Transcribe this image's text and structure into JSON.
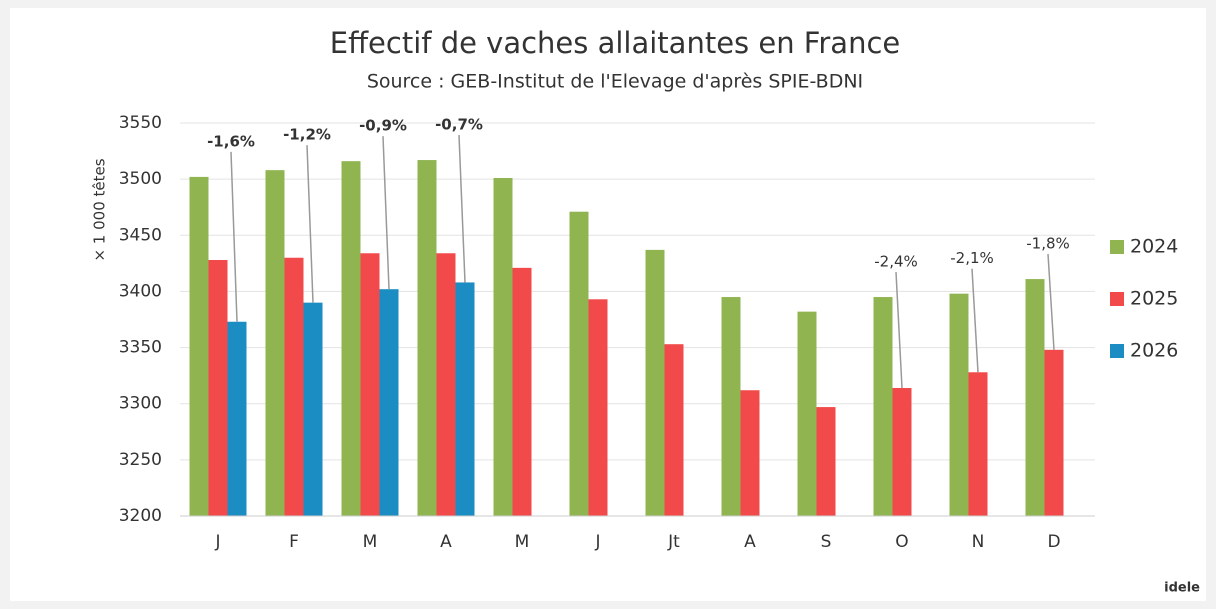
{
  "chart_data": {
    "type": "bar",
    "title": "Effectif de vaches allaitantes en France",
    "subtitle": "Source : GEB-Institut de l'Elevage d'après SPIE-BDNI",
    "y_label": "× 1 000 têtes",
    "categories": [
      "J",
      "F",
      "M",
      "A",
      "M",
      "J",
      "Jt",
      "A",
      "S",
      "O",
      "N",
      "D"
    ],
    "series": [
      {
        "name": "2024",
        "color": "#8fb450",
        "values": [
          3502,
          3508,
          3516,
          3517,
          3501,
          3471,
          3437,
          3395,
          3382,
          3395,
          3398,
          3411
        ]
      },
      {
        "name": "2025",
        "color": "#f24a4a",
        "values": [
          3428,
          3430,
          3434,
          3434,
          3421,
          3393,
          3353,
          3312,
          3297,
          3314,
          3328,
          3348
        ],
        "annotations": [
          null,
          null,
          null,
          null,
          null,
          null,
          null,
          null,
          null,
          "-2,4%",
          "-2,1%",
          "-1,8%"
        ]
      },
      {
        "name": "2026",
        "color": "#1b8dc3",
        "values": [
          3373,
          3390,
          3402,
          3408,
          null,
          null,
          null,
          null,
          null,
          null,
          null,
          null
        ],
        "annotations": [
          "-1,6%",
          "-1,2%",
          "-0,9%",
          "-0,7%",
          null,
          null,
          null,
          null,
          null,
          null,
          null,
          null
        ]
      }
    ],
    "ylim": [
      3200,
      3550
    ],
    "yticks": [
      3200,
      3250,
      3300,
      3350,
      3400,
      3450,
      3500,
      3550
    ],
    "grid": true,
    "legend": "right",
    "logo": "idele"
  }
}
